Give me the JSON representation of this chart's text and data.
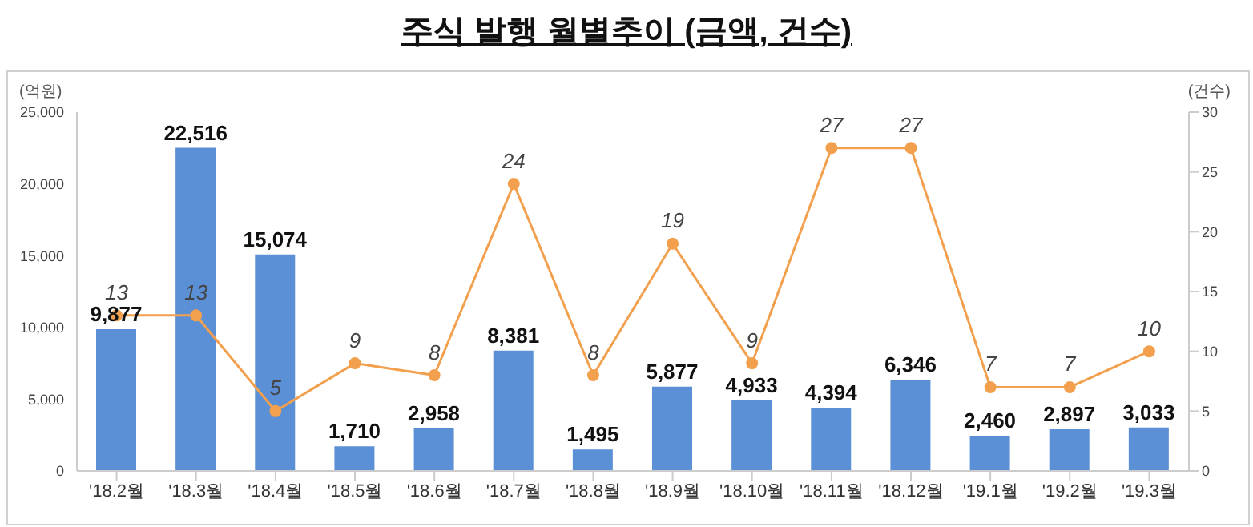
{
  "chart_data": {
    "type": "bar",
    "title": "주식 발행 월별추이 (금액, 건수)",
    "ylabel": "(억원)",
    "y2label": "(건수)",
    "categories": [
      "'18.2월",
      "'18.3월",
      "'18.4월",
      "'18.5월",
      "'18.6월",
      "'18.7월",
      "'18.8월",
      "'18.9월",
      "'18.10월",
      "'18.11월",
      "'18.12월",
      "'19.1월",
      "'19.2월",
      "'19.3월"
    ],
    "series": [
      {
        "color": "#5b8fd6",
        "values": [
          9877,
          22516,
          15074,
          1710,
          2958,
          8381,
          1495,
          5877,
          4933,
          4394,
          6346,
          2460,
          2897,
          3033
        ],
        "value_labels": [
          "9,877",
          "22,516",
          "15,074",
          "1,710",
          "2,958",
          "8,381",
          "1,495",
          "5,877",
          "4,933",
          "4,394",
          "6,346",
          "2,460",
          "2,897",
          "3,033"
        ]
      },
      {
        "type": "line",
        "axis": "y2",
        "color": "#f2a04e",
        "marker": "circle",
        "values": [
          13,
          13,
          5,
          9,
          8,
          24,
          8,
          19,
          9,
          27,
          27,
          7,
          7,
          10
        ],
        "value_labels": [
          "13",
          "13",
          "5",
          "9",
          "8",
          "24",
          "8",
          "19",
          "9",
          "27",
          "27",
          "7",
          "7",
          "10"
        ]
      }
    ],
    "ylim": [
      0,
      25000
    ],
    "yticks": [
      {
        "value": 0,
        "label": "0"
      },
      {
        "value": 5000,
        "label": "5,000"
      },
      {
        "value": 10000,
        "label": "10,000"
      },
      {
        "value": 15000,
        "label": "15,000"
      },
      {
        "value": 20000,
        "label": "20,000"
      },
      {
        "value": 25000,
        "label": "25,000"
      }
    ],
    "y2lim": [
      0,
      30
    ],
    "y2ticks": [
      0,
      5,
      10,
      15,
      20,
      25,
      30
    ]
  }
}
